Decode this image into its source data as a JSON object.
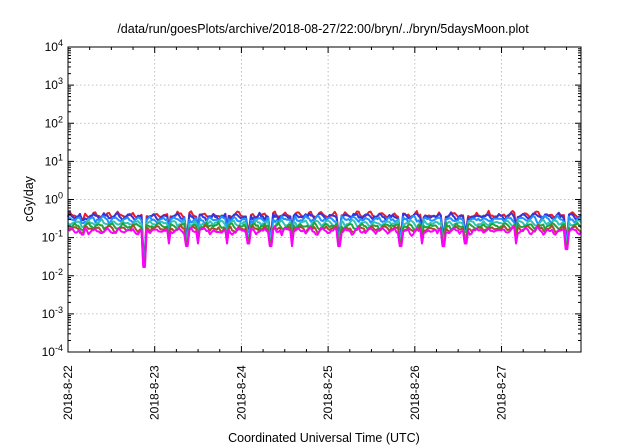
{
  "chart_data": {
    "type": "line",
    "title": "/data/run/goesPlots/archive/2018-08-27/22:00/bryn/../bryn/5daysMoon.plot",
    "xlabel": "Coordinated Universal Time (UTC)",
    "ylabel": "cGy/day",
    "y_scale": "log",
    "ylim": [
      0.0001,
      10000
    ],
    "y_ticks": [
      {
        "base": "10",
        "exp": "4"
      },
      {
        "base": "10",
        "exp": "3"
      },
      {
        "base": "10",
        "exp": "2"
      },
      {
        "base": "10",
        "exp": "1"
      },
      {
        "base": "10",
        "exp": "0"
      },
      {
        "base": "10",
        "exp": "-1"
      },
      {
        "base": "10",
        "exp": "-2"
      },
      {
        "base": "10",
        "exp": "-3"
      },
      {
        "base": "10",
        "exp": "-4"
      }
    ],
    "xlim": [
      "2018-08-22 00:00",
      "2018-08-27 22:00"
    ],
    "x_ticks": [
      "2018-8-22",
      "2018-8-23",
      "2018-8-24",
      "2018-8-25",
      "2018-8-26",
      "2018-8-27"
    ],
    "grid": true,
    "series": [
      {
        "color": "#e4202e",
        "base": 0.39
      },
      {
        "color": "#3434d8",
        "base": 0.36
      },
      {
        "color": "#1e90ff",
        "base": 0.3
      },
      {
        "color": "#2ec4b6",
        "base": 0.24
      },
      {
        "color": "#21a33b",
        "base": 0.2
      },
      {
        "color": "#a0522d",
        "base": 0.17
      },
      {
        "color": "#ff00ff",
        "base": 0.15
      }
    ],
    "dips": [
      {
        "x": "2018-08-22 04:00",
        "y": 0.12
      },
      {
        "x": "2018-08-22 21:00",
        "y": 0.017
      },
      {
        "x": "2018-08-23 04:00",
        "y": 0.07
      },
      {
        "x": "2018-08-23 09:00",
        "y": 0.06
      },
      {
        "x": "2018-08-23 12:00",
        "y": 0.07
      },
      {
        "x": "2018-08-23 20:00",
        "y": 0.07
      },
      {
        "x": "2018-08-24 02:00",
        "y": 0.07
      },
      {
        "x": "2018-08-24 08:00",
        "y": 0.06
      },
      {
        "x": "2018-08-24 14:00",
        "y": 0.06
      },
      {
        "x": "2018-08-25 03:00",
        "y": 0.06
      },
      {
        "x": "2018-08-25 20:00",
        "y": 0.06
      },
      {
        "x": "2018-08-26 02:00",
        "y": 0.07
      },
      {
        "x": "2018-08-26 08:00",
        "y": 0.06
      },
      {
        "x": "2018-08-26 14:00",
        "y": 0.07
      },
      {
        "x": "2018-08-27 04:00",
        "y": 0.07
      },
      {
        "x": "2018-08-27 18:00",
        "y": 0.05
      }
    ]
  }
}
